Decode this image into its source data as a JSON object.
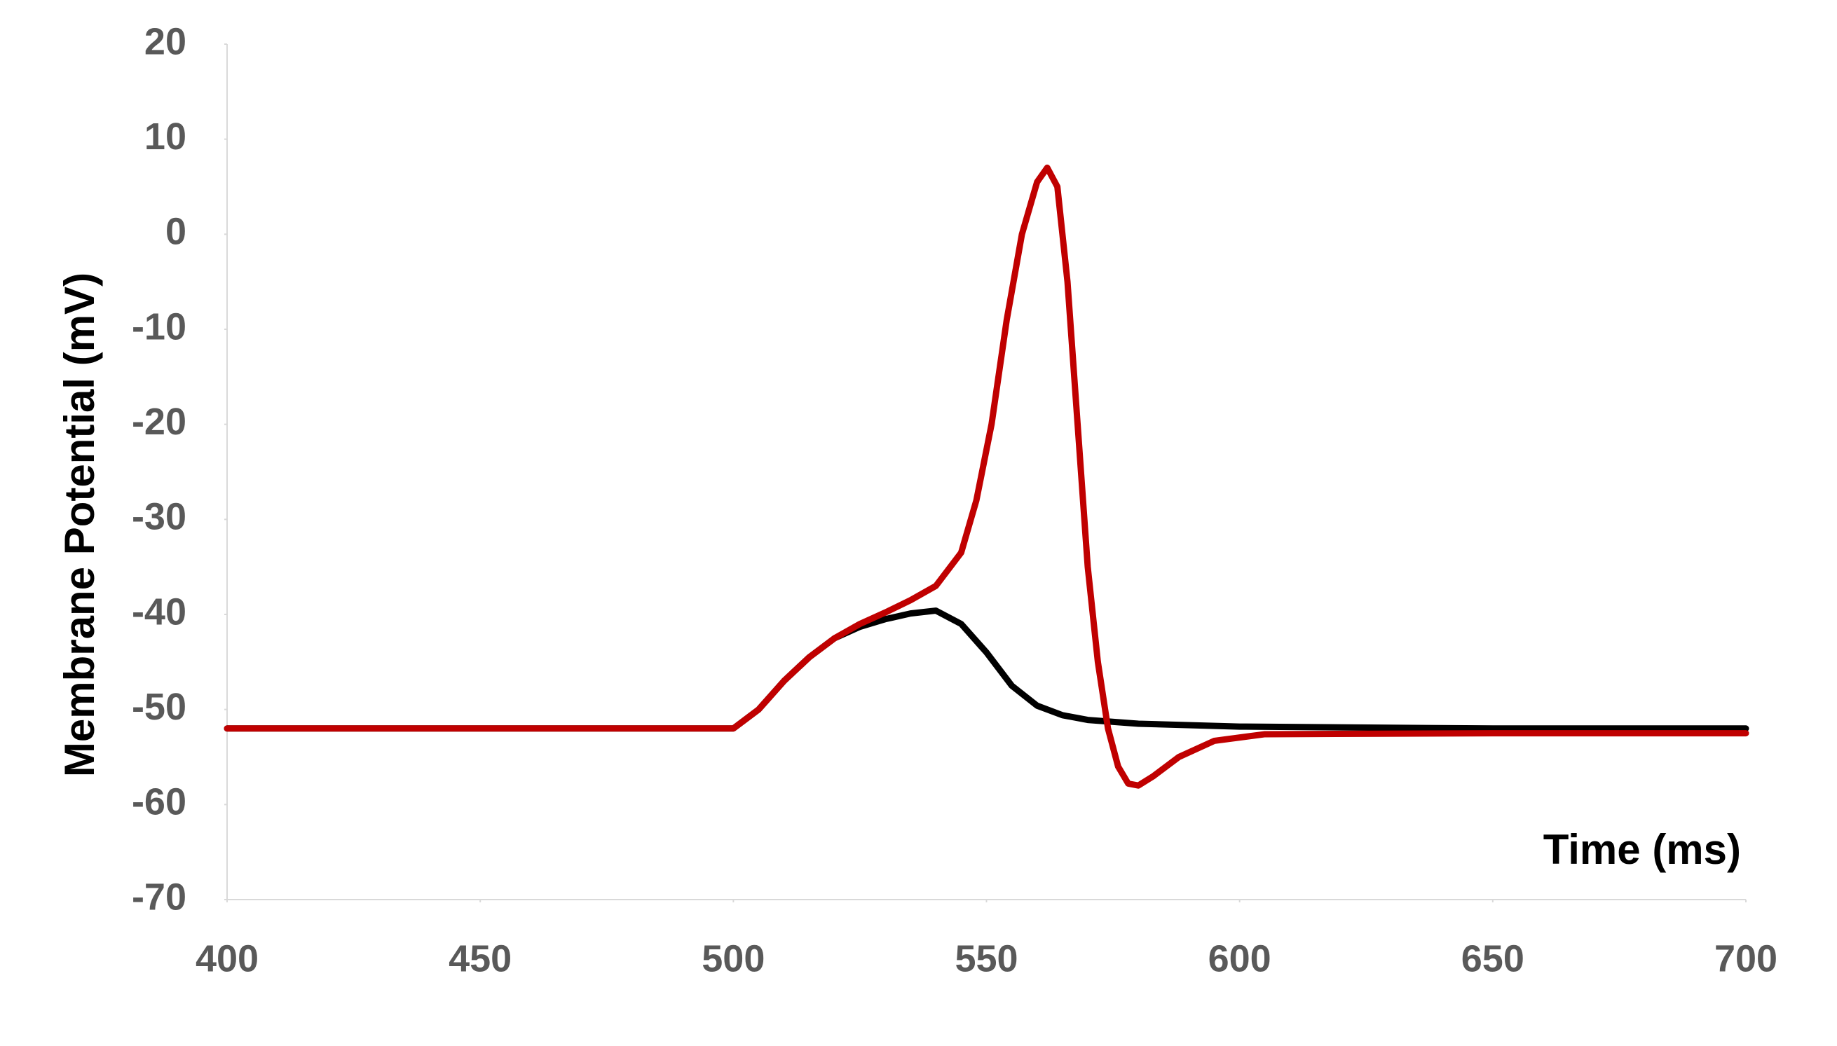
{
  "chart_data": {
    "type": "line",
    "xlabel": "Time (ms)",
    "ylabel": "Membrane Potential (mV)",
    "xlim": [
      400,
      700
    ],
    "xticks": [
      400,
      450,
      500,
      550,
      600,
      650,
      700
    ],
    "ylim": [
      -70,
      20
    ],
    "yticks": [
      -70,
      -60,
      -50,
      -40,
      -30,
      -20,
      -10,
      0,
      10,
      20
    ],
    "grid": false,
    "series": [
      {
        "color": "#000000",
        "x": [
          400,
          500,
          505,
          510,
          515,
          520,
          525,
          530,
          535,
          540,
          545,
          550,
          555,
          560,
          565,
          570,
          580,
          600,
          650,
          700
        ],
        "values": [
          -52,
          -52,
          -50,
          -47,
          -44.5,
          -42.5,
          -41.3,
          -40.5,
          -39.9,
          -39.6,
          -41,
          -44,
          -47.5,
          -49.6,
          -50.6,
          -51.1,
          -51.5,
          -51.8,
          -52,
          -52
        ]
      },
      {
        "color": "#c00000",
        "x": [
          400,
          500,
          505,
          510,
          515,
          520,
          525,
          530,
          535,
          540,
          545,
          548,
          551,
          554,
          557,
          560,
          562,
          564,
          566,
          568,
          570,
          572,
          574,
          576,
          578,
          580,
          583,
          588,
          595,
          605,
          650,
          700
        ],
        "values": [
          -52,
          -52,
          -50,
          -47,
          -44.5,
          -42.5,
          -41,
          -39.8,
          -38.5,
          -37,
          -33.5,
          -28,
          -20,
          -9,
          0,
          5.5,
          7,
          5,
          -5,
          -20,
          -35,
          -45,
          -52,
          -56,
          -57.8,
          -58,
          -57,
          -55,
          -53.3,
          -52.6,
          -52.5,
          -52.5
        ]
      }
    ]
  }
}
